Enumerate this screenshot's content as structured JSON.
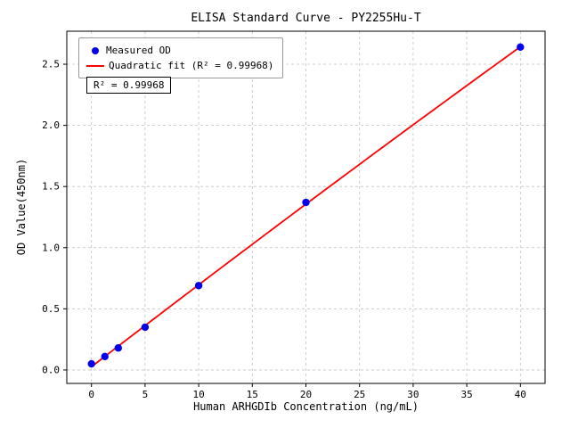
{
  "chart_data": {
    "type": "scatter",
    "title": "ELISA Standard Curve - PY2255Hu-T",
    "xlabel": "Human ARHGDIb Concentration (ng/mL)",
    "ylabel": "OD Value(450nm)",
    "x": [
      0,
      1.25,
      2.5,
      5,
      10,
      20,
      40
    ],
    "y": [
      0.05,
      0.11,
      0.18,
      0.35,
      0.69,
      1.37,
      2.64
    ],
    "series": [
      {
        "name": "Measured OD",
        "type": "scatter",
        "color": "#0000ee"
      },
      {
        "name": "Quadratic fit (R² = 0.99968)",
        "type": "line",
        "color": "#ff0000"
      }
    ],
    "fit": {
      "kind": "quadratic",
      "r_squared": "0.99968"
    },
    "annotation": "R² = 0.99968",
    "xlim": [
      -2.3,
      42.3
    ],
    "ylim": [
      -0.11,
      2.77
    ],
    "xticks": [
      0,
      5,
      10,
      15,
      20,
      25,
      30,
      35,
      40
    ],
    "xtick_labels": [
      "0",
      "5",
      "10",
      "15",
      "20",
      "25",
      "30",
      "35",
      "40"
    ],
    "yticks": [
      0.0,
      0.5,
      1.0,
      1.5,
      2.0,
      2.5
    ],
    "ytick_labels": [
      "0.0",
      "0.5",
      "1.0",
      "1.5",
      "2.0",
      "2.5"
    ],
    "grid": true,
    "legend_position": "upper left",
    "colors": {
      "grid": "#c0c0c0",
      "spine": "#000000",
      "text": "#000000",
      "background": "#ffffff"
    }
  }
}
